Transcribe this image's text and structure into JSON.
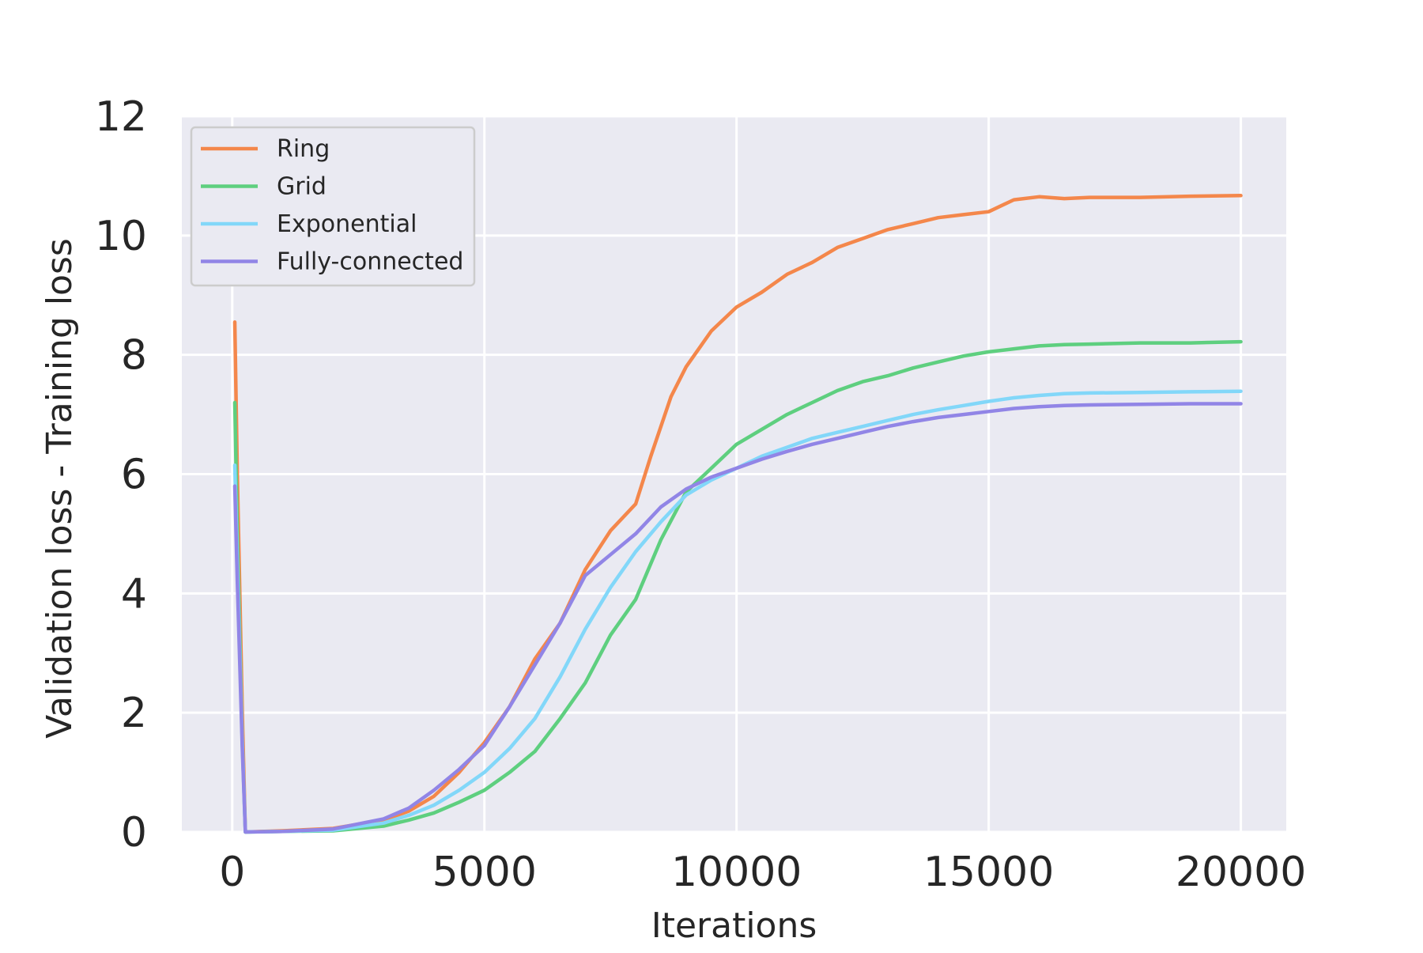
{
  "chart_data": {
    "type": "line",
    "title": "",
    "xlabel": "Iterations",
    "ylabel": "Validation loss - Training loss",
    "xlim": [
      -1000,
      20900
    ],
    "ylim": [
      0,
      12
    ],
    "xticks": [
      0,
      5000,
      10000,
      15000,
      20000
    ],
    "yticks": [
      0,
      2,
      4,
      6,
      8,
      10,
      12
    ],
    "grid": true,
    "legend_position": "top-left",
    "background": "#eaeaf2",
    "series": [
      {
        "name": "Ring",
        "color": "#f4874b",
        "points": [
          [
            50,
            8.55
          ],
          [
            100,
            6.0
          ],
          [
            200,
            2.0
          ],
          [
            260,
            0
          ],
          [
            1000,
            0.02
          ],
          [
            2000,
            0.06
          ],
          [
            3000,
            0.2
          ],
          [
            3500,
            0.35
          ],
          [
            4000,
            0.6
          ],
          [
            4500,
            1.0
          ],
          [
            5000,
            1.5
          ],
          [
            5500,
            2.1
          ],
          [
            6000,
            2.9
          ],
          [
            6500,
            3.5
          ],
          [
            7000,
            4.4
          ],
          [
            7500,
            5.05
          ],
          [
            8000,
            5.5
          ],
          [
            8300,
            6.3
          ],
          [
            8700,
            7.3
          ],
          [
            9000,
            7.8
          ],
          [
            9500,
            8.4
          ],
          [
            10000,
            8.8
          ],
          [
            10500,
            9.05
          ],
          [
            11000,
            9.35
          ],
          [
            11500,
            9.55
          ],
          [
            12000,
            9.8
          ],
          [
            12500,
            9.95
          ],
          [
            13000,
            10.1
          ],
          [
            13500,
            10.2
          ],
          [
            14000,
            10.3
          ],
          [
            14500,
            10.35
          ],
          [
            15000,
            10.4
          ],
          [
            15500,
            10.6
          ],
          [
            16000,
            10.65
          ],
          [
            16500,
            10.62
          ],
          [
            17000,
            10.64
          ],
          [
            18000,
            10.64
          ],
          [
            19000,
            10.66
          ],
          [
            20000,
            10.67
          ]
        ]
      },
      {
        "name": "Grid",
        "color": "#5ecf7f",
        "points": [
          [
            50,
            7.2
          ],
          [
            100,
            5.0
          ],
          [
            200,
            1.5
          ],
          [
            260,
            0
          ],
          [
            1000,
            0.01
          ],
          [
            2000,
            0.02
          ],
          [
            3000,
            0.1
          ],
          [
            3500,
            0.2
          ],
          [
            4000,
            0.32
          ],
          [
            4500,
            0.5
          ],
          [
            5000,
            0.7
          ],
          [
            5500,
            1.0
          ],
          [
            6000,
            1.35
          ],
          [
            6500,
            1.9
          ],
          [
            7000,
            2.5
          ],
          [
            7500,
            3.3
          ],
          [
            8000,
            3.9
          ],
          [
            8500,
            4.9
          ],
          [
            9000,
            5.7
          ],
          [
            9500,
            6.1
          ],
          [
            10000,
            6.5
          ],
          [
            10500,
            6.75
          ],
          [
            11000,
            7.0
          ],
          [
            11500,
            7.2
          ],
          [
            12000,
            7.4
          ],
          [
            12500,
            7.55
          ],
          [
            13000,
            7.65
          ],
          [
            13500,
            7.78
          ],
          [
            14000,
            7.88
          ],
          [
            14500,
            7.98
          ],
          [
            15000,
            8.05
          ],
          [
            15500,
            8.1
          ],
          [
            16000,
            8.15
          ],
          [
            16500,
            8.17
          ],
          [
            17000,
            8.18
          ],
          [
            18000,
            8.2
          ],
          [
            19000,
            8.2
          ],
          [
            20000,
            8.22
          ]
        ]
      },
      {
        "name": "Exponential",
        "color": "#82d7f9",
        "points": [
          [
            50,
            6.15
          ],
          [
            100,
            4.5
          ],
          [
            200,
            1.5
          ],
          [
            260,
            0
          ],
          [
            1000,
            0.01
          ],
          [
            2000,
            0.03
          ],
          [
            3000,
            0.15
          ],
          [
            3500,
            0.28
          ],
          [
            4000,
            0.45
          ],
          [
            4500,
            0.7
          ],
          [
            5000,
            1.0
          ],
          [
            5500,
            1.4
          ],
          [
            6000,
            1.9
          ],
          [
            6500,
            2.6
          ],
          [
            7000,
            3.4
          ],
          [
            7500,
            4.1
          ],
          [
            8000,
            4.7
          ],
          [
            8500,
            5.2
          ],
          [
            9000,
            5.65
          ],
          [
            9500,
            5.9
          ],
          [
            10000,
            6.1
          ],
          [
            10500,
            6.3
          ],
          [
            11000,
            6.45
          ],
          [
            11500,
            6.6
          ],
          [
            12000,
            6.7
          ],
          [
            12500,
            6.8
          ],
          [
            13000,
            6.9
          ],
          [
            13500,
            7.0
          ],
          [
            14000,
            7.08
          ],
          [
            14500,
            7.15
          ],
          [
            15000,
            7.22
          ],
          [
            15500,
            7.28
          ],
          [
            16000,
            7.32
          ],
          [
            16500,
            7.35
          ],
          [
            17000,
            7.36
          ],
          [
            18000,
            7.37
          ],
          [
            19000,
            7.38
          ],
          [
            20000,
            7.39
          ]
        ]
      },
      {
        "name": "Fully-connected",
        "color": "#9185e6",
        "points": [
          [
            50,
            5.8
          ],
          [
            100,
            4.2
          ],
          [
            200,
            1.4
          ],
          [
            260,
            0
          ],
          [
            1000,
            0.01
          ],
          [
            2000,
            0.05
          ],
          [
            3000,
            0.22
          ],
          [
            3500,
            0.4
          ],
          [
            4000,
            0.7
          ],
          [
            4500,
            1.05
          ],
          [
            5000,
            1.45
          ],
          [
            5500,
            2.1
          ],
          [
            6000,
            2.8
          ],
          [
            6500,
            3.5
          ],
          [
            7000,
            4.3
          ],
          [
            7500,
            4.65
          ],
          [
            8000,
            5.0
          ],
          [
            8500,
            5.45
          ],
          [
            9000,
            5.75
          ],
          [
            9500,
            5.95
          ],
          [
            10000,
            6.1
          ],
          [
            10500,
            6.25
          ],
          [
            11000,
            6.38
          ],
          [
            11500,
            6.5
          ],
          [
            12000,
            6.6
          ],
          [
            12500,
            6.7
          ],
          [
            13000,
            6.8
          ],
          [
            13500,
            6.88
          ],
          [
            14000,
            6.95
          ],
          [
            14500,
            7.0
          ],
          [
            15000,
            7.05
          ],
          [
            15500,
            7.1
          ],
          [
            16000,
            7.13
          ],
          [
            16500,
            7.15
          ],
          [
            17000,
            7.16
          ],
          [
            18000,
            7.17
          ],
          [
            19000,
            7.18
          ],
          [
            20000,
            7.18
          ]
        ]
      }
    ]
  }
}
